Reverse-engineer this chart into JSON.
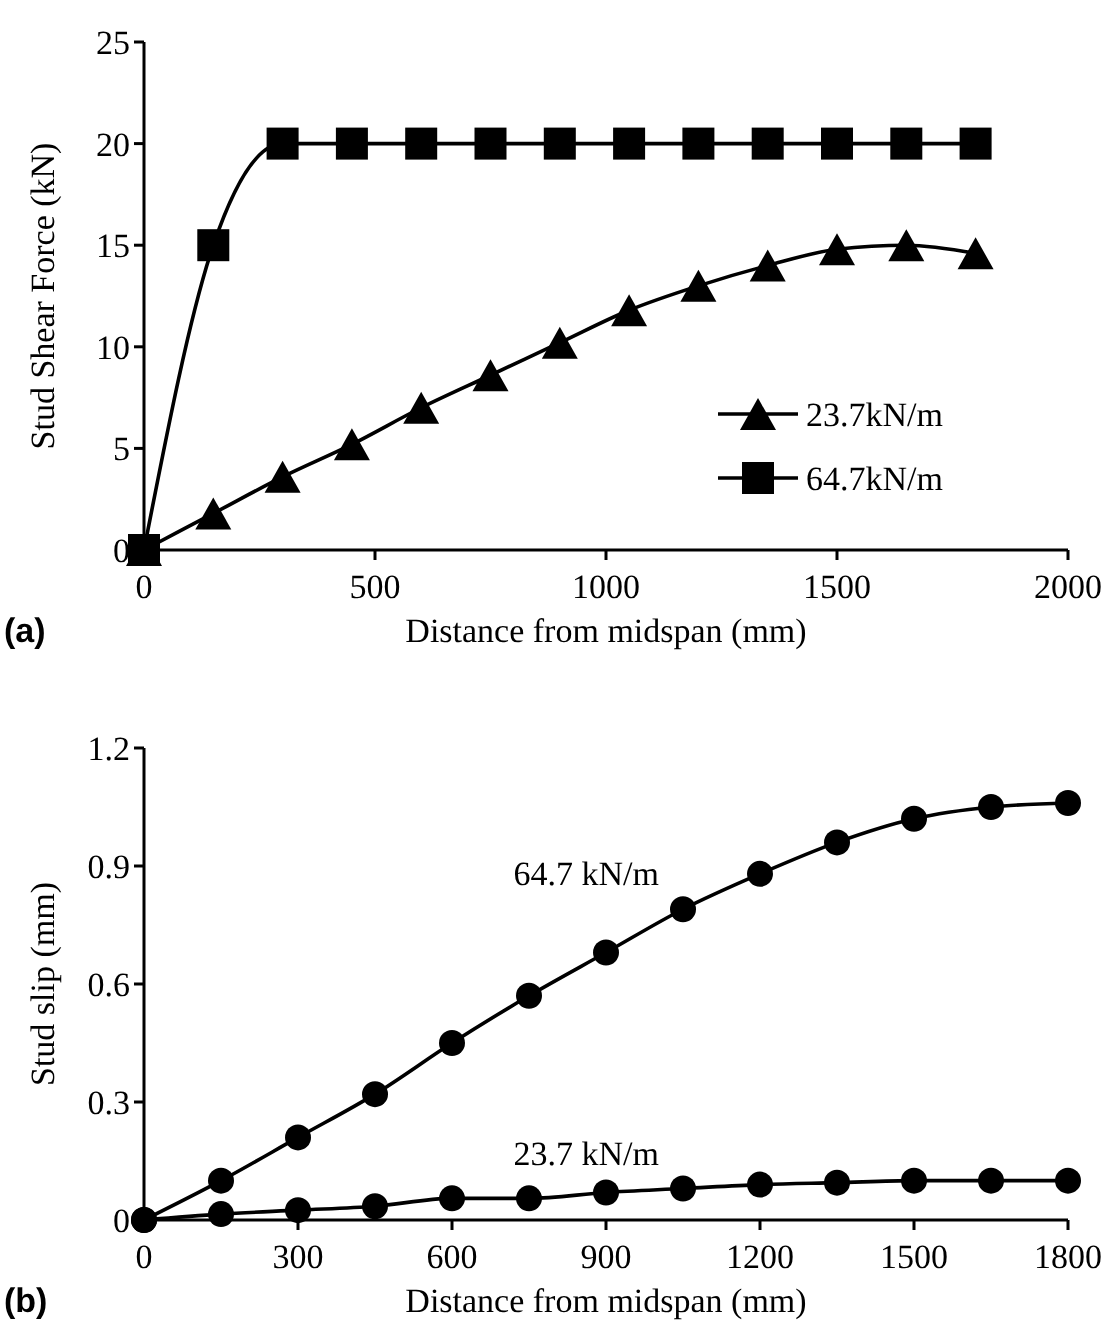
{
  "chart_data": [
    {
      "type": "line",
      "xlabel": "Distance from midspan (mm)",
      "ylabel": "Stud Shear Force (kN)",
      "xlim": [
        0,
        2000
      ],
      "xticks": [
        0,
        500,
        1000,
        1500,
        2000
      ],
      "ylim": [
        0,
        25
      ],
      "yticks": [
        0,
        5,
        10,
        15,
        20,
        25
      ],
      "legend": "bottom right",
      "grid": false,
      "annotations": [
        "(a)"
      ],
      "x": [
        0,
        150,
        300,
        450,
        600,
        750,
        900,
        1050,
        1200,
        1350,
        1500,
        1650,
        1800
      ],
      "series": [
        {
          "name": "23.7kN/m",
          "color": "#000000",
          "marker": "triangle",
          "values": [
            0,
            1.8,
            3.6,
            5.2,
            7,
            8.6,
            10.2,
            11.8,
            13,
            14,
            14.8,
            15,
            14.6
          ]
        },
        {
          "name": "64.7kN/m",
          "color": "#000000",
          "marker": "square",
          "values": [
            0,
            15,
            20,
            20,
            20,
            20,
            20,
            20,
            20,
            20,
            20,
            20,
            20
          ]
        }
      ]
    },
    {
      "type": "line",
      "xlabel": "Distance from midspan (mm)",
      "ylabel": "Stud slip (mm)",
      "xlim": [
        0,
        1800
      ],
      "xticks": [
        0,
        300,
        600,
        900,
        1200,
        1500,
        1800
      ],
      "ylim": [
        0,
        1.2
      ],
      "yticks": [
        0,
        0.3,
        0.6,
        0.9,
        1.2
      ],
      "legend": false,
      "grid": false,
      "annotations": [
        "(b)"
      ],
      "x": [
        0,
        150,
        300,
        450,
        600,
        750,
        900,
        1050,
        1200,
        1350,
        1500,
        1650,
        1800
      ],
      "series": [
        {
          "name": "64.7 kN/m",
          "color": "#000000",
          "marker": "circle",
          "values": [
            0,
            0.1,
            0.21,
            0.32,
            0.45,
            0.57,
            0.68,
            0.79,
            0.88,
            0.96,
            1.02,
            1.05,
            1.06
          ]
        },
        {
          "name": "23.7 kN/m",
          "color": "#000000",
          "marker": "circle",
          "values": [
            0,
            0.015,
            0.025,
            0.035,
            0.055,
            0.055,
            0.07,
            0.08,
            0.09,
            0.095,
            0.1,
            0.1,
            0.1
          ]
        }
      ]
    }
  ]
}
